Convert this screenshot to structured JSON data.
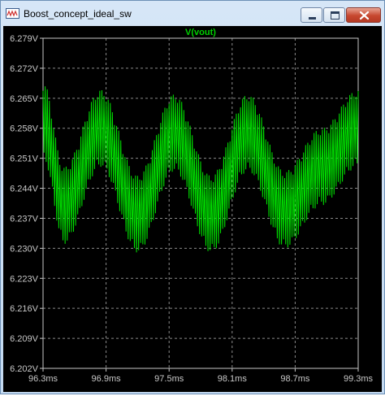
{
  "window": {
    "title": "Boost_concept_ideal_sw",
    "controls": {
      "minimize": "minimize",
      "maximize": "maximize",
      "close": "close"
    }
  },
  "colors": {
    "plot_background": "#000000",
    "trace": "#00e000",
    "title_trace_label": "#00d000",
    "axis_text": "#c8c8c8",
    "grid": "#8a8a8a",
    "titlebar": "#cfe0f3"
  },
  "chart_data": {
    "type": "line",
    "title": "V(vout)",
    "xlabel": "",
    "ylabel": "",
    "x_unit": "ms",
    "y_unit": "V",
    "xlim": [
      96.3,
      99.3
    ],
    "ylim": [
      6.202,
      6.279
    ],
    "x_ticks": [
      "96.3ms",
      "96.9ms",
      "97.5ms",
      "98.1ms",
      "98.7ms",
      "99.3ms"
    ],
    "y_ticks": [
      "6.279V",
      "6.272V",
      "6.265V",
      "6.258V",
      "6.251V",
      "6.244V",
      "6.237V",
      "6.230V",
      "6.223V",
      "6.216V",
      "6.209V",
      "6.202V"
    ],
    "grid": true,
    "series": [
      {
        "name": "V(vout)",
        "description": "switching ripple superimposed on a slow sinusoidal oscillation",
        "envelope_center": {
          "x": [
            96.3,
            96.5,
            96.85,
            97.2,
            97.55,
            97.9,
            98.25,
            98.6,
            98.95,
            99.3
          ],
          "y": [
            6.26,
            6.24,
            6.258,
            6.238,
            6.257,
            6.238,
            6.257,
            6.239,
            6.249,
            6.258
          ]
        },
        "ripple_peak_to_peak": 0.018,
        "ripple_cycles": 150
      }
    ]
  }
}
